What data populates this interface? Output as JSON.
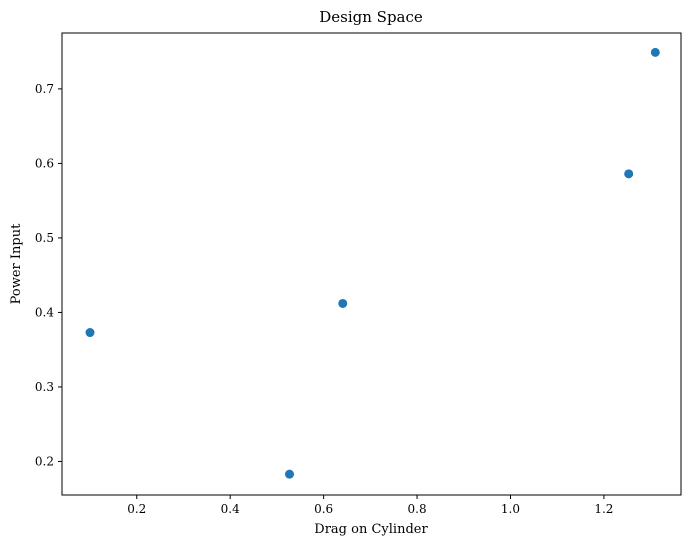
{
  "chart_data": {
    "type": "scatter",
    "title": "Design Space",
    "xlabel": "Drag on Cylinder",
    "ylabel": "Power Input",
    "xlim": [
      0.04,
      1.365
    ],
    "ylim": [
      0.155,
      0.775
    ],
    "xticks": [
      0.2,
      0.4,
      0.6,
      0.8,
      1.0,
      1.2
    ],
    "xtick_labels": [
      "0.2",
      "0.4",
      "0.6",
      "0.8",
      "1.0",
      "1.2"
    ],
    "yticks": [
      0.2,
      0.3,
      0.4,
      0.5,
      0.6,
      0.7
    ],
    "ytick_labels": [
      "0.2",
      "0.3",
      "0.4",
      "0.5",
      "0.6",
      "0.7"
    ],
    "grid": false,
    "color": "#1f77b4",
    "points": [
      {
        "x": 0.1,
        "y": 0.373
      },
      {
        "x": 0.527,
        "y": 0.183
      },
      {
        "x": 0.641,
        "y": 0.412
      },
      {
        "x": 1.253,
        "y": 0.586
      },
      {
        "x": 1.31,
        "y": 0.749
      }
    ]
  }
}
